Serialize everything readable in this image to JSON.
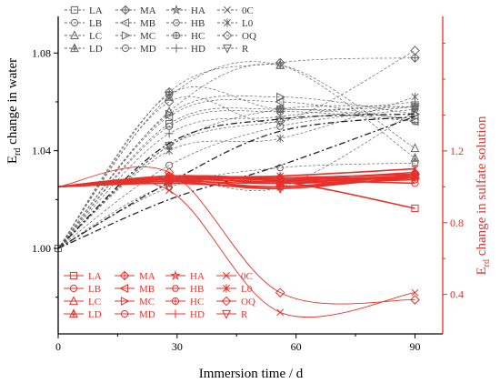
{
  "colors": {
    "water": "#666666",
    "sulfate": "#e8302a",
    "axis_black": "#000000"
  },
  "chart_data": {
    "type": "line",
    "xlabel": "Immersion time / d",
    "ylabel_left": "E_rd change in water",
    "ylabel_left_main": "E",
    "ylabel_left_sub": "rd",
    "ylabel_left_rest": " change in water",
    "ylabel_right": "E_rd change in sulfate solution",
    "ylabel_right_main": "E",
    "ylabel_right_sub": "rd",
    "ylabel_right_rest": " change in sulfate solution",
    "x": [
      0,
      28,
      56,
      90
    ],
    "x_ticks": [
      "0",
      "30",
      "60",
      "90"
    ],
    "xlim": [
      0,
      97
    ],
    "y_left_ticks": [
      "1.00",
      "1.04",
      "1.08"
    ],
    "y_left_lim": [
      0.965,
      1.095
    ],
    "y_right_ticks": [
      "0.4",
      "0.8",
      "1.2"
    ],
    "y_right_lim": [
      0.18,
      1.95
    ],
    "water_series": [
      {
        "name": "LA",
        "marker": "square",
        "values": [
          1.0,
          1.051,
          1.057,
          1.053
        ]
      },
      {
        "name": "LB",
        "marker": "circle",
        "values": [
          1.0,
          1.05,
          1.056,
          1.052
        ]
      },
      {
        "name": "LC",
        "marker": "triangle-up",
        "values": [
          1.0,
          1.056,
          1.075,
          1.041
        ]
      },
      {
        "name": "LD",
        "marker": "triangle-plus",
        "values": [
          1.0,
          1.062,
          1.075,
          1.037
        ]
      },
      {
        "name": "MA",
        "marker": "diamond-plus",
        "values": [
          1.0,
          1.064,
          1.076,
          1.078
        ]
      },
      {
        "name": "MB",
        "marker": "triangle-left",
        "values": [
          1.0,
          1.054,
          1.06,
          1.052
        ]
      },
      {
        "name": "MC",
        "marker": "triangle-right",
        "values": [
          1.0,
          1.055,
          1.062,
          1.055
        ]
      },
      {
        "name": "MD",
        "marker": "circle",
        "values": [
          1.0,
          1.034,
          1.05,
          1.057
        ]
      },
      {
        "name": "HA",
        "marker": "star",
        "values": [
          1.0,
          1.042,
          1.057,
          1.058
        ]
      },
      {
        "name": "HB",
        "marker": "hexagon",
        "values": [
          1.0,
          1.025,
          1.033,
          1.035
        ]
      },
      {
        "name": "HC",
        "marker": "circle-plus",
        "values": [
          1.0,
          1.063,
          1.057,
          1.058
        ]
      },
      {
        "name": "HD",
        "marker": "plus",
        "values": [
          1.0,
          1.047,
          1.054,
          1.06
        ]
      },
      {
        "name": "0C",
        "marker": "x",
        "values": [
          1.0,
          1.026,
          1.025,
          1.056
        ]
      },
      {
        "name": "L0",
        "marker": "asterisk",
        "values": [
          1.0,
          1.04,
          1.045,
          1.062
        ]
      },
      {
        "name": "OQ",
        "marker": "diamond",
        "values": [
          1.0,
          1.06,
          1.052,
          1.081
        ]
      },
      {
        "name": "R",
        "marker": "triangle-down",
        "values": [
          1.0,
          1.042,
          1.052,
          1.058
        ]
      },
      {
        "name": "",
        "marker": "none",
        "dash": "dashdot",
        "values": [
          1.0,
          1.02,
          1.034,
          1.054
        ]
      },
      {
        "name": "",
        "marker": "none",
        "dash": "dashdot",
        "values": [
          1.0,
          1.027,
          1.048,
          1.054
        ]
      },
      {
        "name": "",
        "marker": "none",
        "dash": "dashdot",
        "values": [
          1.0,
          1.043,
          1.053,
          1.055
        ]
      }
    ],
    "sulfate_series": [
      {
        "name": "LA",
        "marker": "square",
        "values": [
          1.0,
          1.05,
          1.03,
          0.88
        ]
      },
      {
        "name": "LB",
        "marker": "circle",
        "values": [
          1.0,
          1.06,
          1.04,
          1.02
        ]
      },
      {
        "name": "LC",
        "marker": "triangle-up",
        "values": [
          1.0,
          1.04,
          1.03,
          1.06
        ]
      },
      {
        "name": "LD",
        "marker": "triangle-plus",
        "values": [
          1.0,
          1.05,
          1.04,
          1.08
        ]
      },
      {
        "name": "MA",
        "marker": "diamond-plus",
        "values": [
          1.0,
          1.06,
          1.05,
          1.07
        ]
      },
      {
        "name": "MB",
        "marker": "triangle-left",
        "values": [
          1.0,
          1.05,
          1.04,
          1.06
        ]
      },
      {
        "name": "MC",
        "marker": "triangle-right",
        "values": [
          1.0,
          1.04,
          1.03,
          1.05
        ]
      },
      {
        "name": "MD",
        "marker": "circle",
        "values": [
          1.0,
          1.05,
          1.02,
          1.04
        ]
      },
      {
        "name": "HA",
        "marker": "star",
        "values": [
          1.0,
          1.03,
          1.02,
          1.06
        ]
      },
      {
        "name": "HB",
        "marker": "hexagon",
        "values": [
          1.0,
          1.04,
          1.0,
          1.07
        ]
      },
      {
        "name": "HC",
        "marker": "circle-plus",
        "values": [
          1.0,
          1.06,
          1.05,
          1.07
        ]
      },
      {
        "name": "HD",
        "marker": "plus",
        "values": [
          1.0,
          1.02,
          1.0,
          1.05
        ]
      },
      {
        "name": "0C",
        "marker": "x",
        "values": [
          1.0,
          0.98,
          0.3,
          0.41
        ]
      },
      {
        "name": "L0",
        "marker": "asterisk",
        "values": [
          1.0,
          1.05,
          1.06,
          1.1
        ]
      },
      {
        "name": "OQ",
        "marker": "diamond",
        "values": [
          1.0,
          1.08,
          0.41,
          0.37
        ]
      },
      {
        "name": "R",
        "marker": "triangle-down",
        "values": [
          1.0,
          1.03,
          0.99,
          1.06
        ]
      }
    ]
  }
}
